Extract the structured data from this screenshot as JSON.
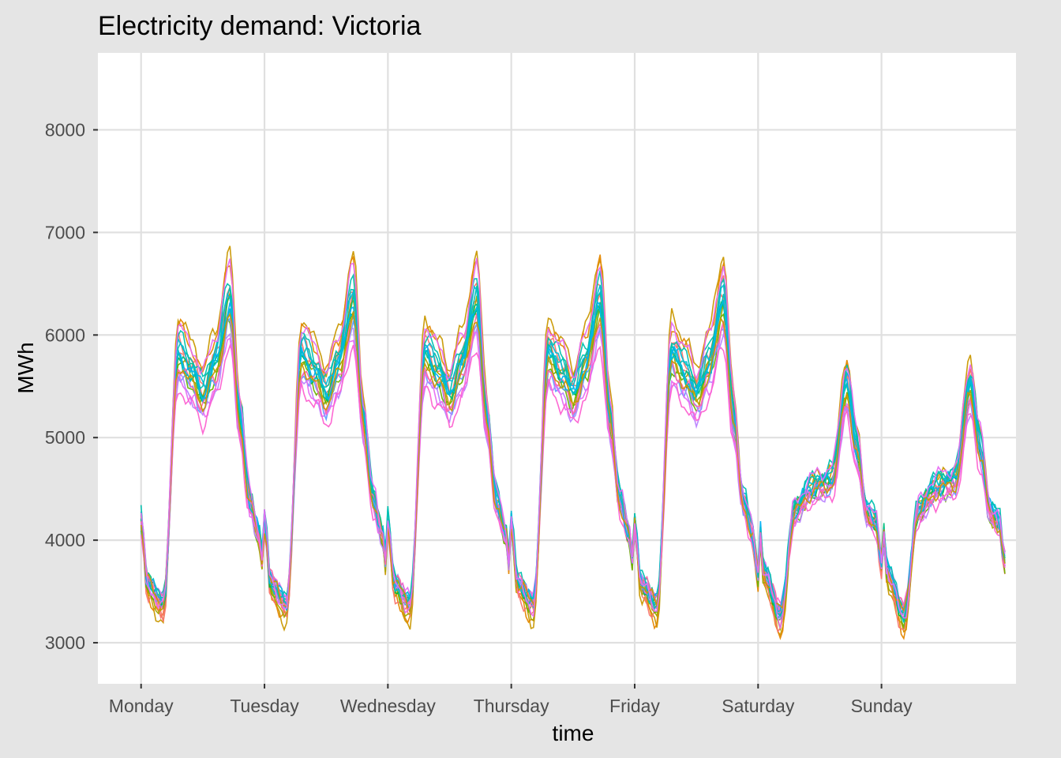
{
  "chart_data": {
    "type": "line",
    "title": "Electricity demand: Victoria",
    "xlabel": "time",
    "ylabel": "MWh",
    "x_unit": "days since Monday 00:00",
    "xlim": [
      -0.35,
      7.09
    ],
    "ylim": [
      2600,
      8750
    ],
    "x_ticks": [
      {
        "label": "Monday",
        "value": 0
      },
      {
        "label": "Tuesday",
        "value": 1
      },
      {
        "label": "Wednesday",
        "value": 2
      },
      {
        "label": "Thursday",
        "value": 3
      },
      {
        "label": "Friday",
        "value": 4
      },
      {
        "label": "Saturday",
        "value": 5
      },
      {
        "label": "Sunday",
        "value": 6
      }
    ],
    "y_ticks": [
      3000,
      4000,
      5000,
      6000,
      7000,
      8000
    ],
    "grid": true,
    "legend": "none",
    "colors": {
      "panel_background": "#ffffff",
      "plot_background": "#e5e5e5",
      "grid_line": "#e0e0e0",
      "palette": [
        "#F8766D",
        "#E58700",
        "#C99800",
        "#A3A500",
        "#6BB100",
        "#00BA38",
        "#00BF7D",
        "#00C0AF",
        "#00BCD8",
        "#00B0F6",
        "#619CFF",
        "#B983FF",
        "#E76BF3",
        "#FD61D1",
        "#FF67A4"
      ]
    },
    "series_profiles": {
      "time_points": [
        0,
        0.05,
        0.18,
        0.3,
        0.42,
        0.5,
        0.6,
        0.72,
        0.8,
        0.88,
        0.95,
        1
      ],
      "weekday_levels": [
        4200,
        3600,
        3400,
        5800,
        5600,
        5400,
        5700,
        6300,
        5200,
        4400,
        4100,
        3700
      ],
      "weekend_levels": [
        4300,
        3700,
        3300,
        4300,
        4500,
        4550,
        4600,
        5500,
        4900,
        4300,
        4200,
        3800
      ]
    },
    "series": [
      {
        "name": "",
        "color": "#C99800",
        "peak_scale": 1.24,
        "offset": 60
      },
      {
        "name": "",
        "color": "#E58700",
        "peak_scale": 1.2,
        "offset": 40
      },
      {
        "name": "",
        "color": "#F8766D",
        "peak_scale": 1.12,
        "offset": -20
      },
      {
        "name": "",
        "color": "#F8766D",
        "peak_scale": 1.07,
        "offset": 0
      },
      {
        "name": "",
        "color": "#A3A500",
        "peak_scale": 1.04,
        "offset": -60
      },
      {
        "name": "",
        "color": "#6BB100",
        "peak_scale": 0.98,
        "offset": -80
      },
      {
        "name": "",
        "color": "#00BA38",
        "peak_scale": 1.0,
        "offset": -30
      },
      {
        "name": "",
        "color": "#00BF7D",
        "peak_scale": 1.02,
        "offset": 20
      },
      {
        "name": "",
        "color": "#00C0AF",
        "peak_scale": 1.03,
        "offset": 50
      },
      {
        "name": "",
        "color": "#00BCD8",
        "peak_scale": 1.05,
        "offset": 40
      },
      {
        "name": "",
        "color": "#00B0F6",
        "peak_scale": 1.01,
        "offset": 10
      },
      {
        "name": "",
        "color": "#619CFF",
        "peak_scale": 0.93,
        "offset": -70
      },
      {
        "name": "",
        "color": "#B983FF",
        "peak_scale": 0.9,
        "offset": -110
      },
      {
        "name": "",
        "color": "#E76BF3",
        "peak_scale": 0.89,
        "offset": -90
      },
      {
        "name": "",
        "color": "#FD61D1",
        "peak_scale": 0.86,
        "offset": -140
      },
      {
        "name": "",
        "color": "#FF67A4",
        "peak_scale": 0.94,
        "offset": -40
      },
      {
        "name": "",
        "color": "#00C0AF",
        "peak_scale": 1.08,
        "offset": 90
      },
      {
        "name": "",
        "color": "#00BCD8",
        "peak_scale": 0.99,
        "offset": -10
      },
      {
        "name": "",
        "color": "#C99800",
        "peak_scale": 0.97,
        "offset": -50
      },
      {
        "name": "",
        "color": "#E76BF3",
        "peak_scale": 1.15,
        "offset": 100
      }
    ]
  }
}
